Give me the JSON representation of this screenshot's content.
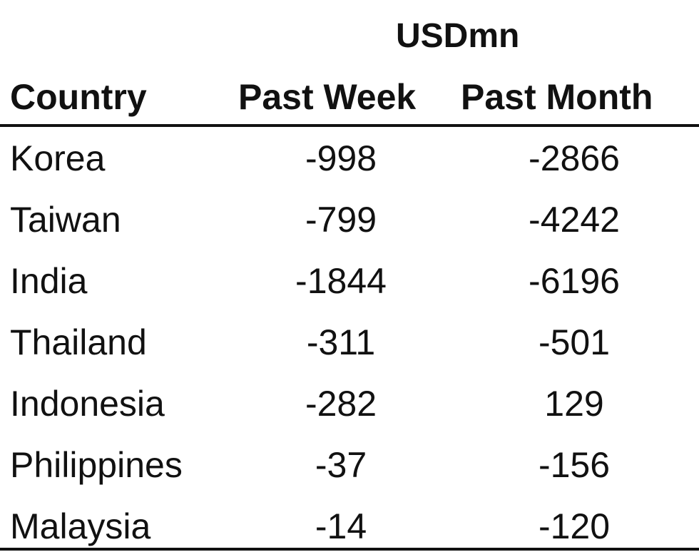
{
  "chart_data": {
    "type": "table",
    "unit_label": "USDmn",
    "columns": [
      "Country",
      "Past Week",
      "Past Month"
    ],
    "rows": [
      {
        "country": "Korea",
        "past_week": "-998",
        "past_month": "-2866"
      },
      {
        "country": "Taiwan",
        "past_week": "-799",
        "past_month": "-4242"
      },
      {
        "country": "India",
        "past_week": "-1844",
        "past_month": "-6196"
      },
      {
        "country": "Thailand",
        "past_week": "-311",
        "past_month": "-501"
      },
      {
        "country": "Indonesia",
        "past_week": "-282",
        "past_month": "129"
      },
      {
        "country": "Philippines",
        "past_week": "-37",
        "past_month": "-156"
      },
      {
        "country": "Malaysia",
        "past_week": "-14",
        "past_month": "-120"
      }
    ]
  }
}
